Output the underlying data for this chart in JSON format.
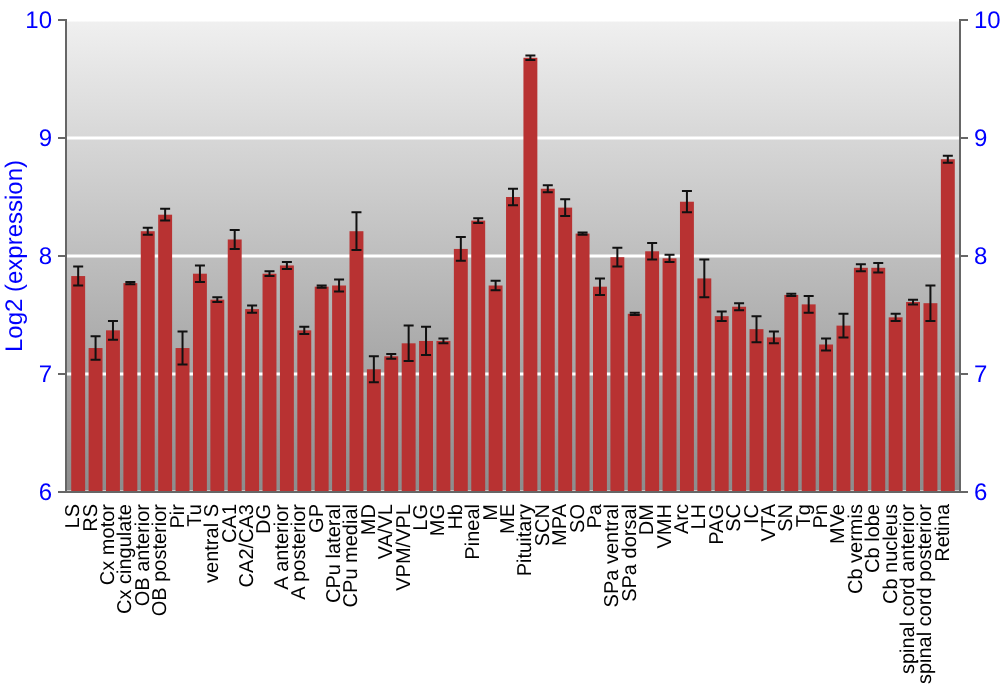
{
  "chart_data": {
    "type": "bar",
    "ylabel": "Log2 (expression)",
    "categories": [
      "LS",
      "RS",
      "Cx motor",
      "Cx cingulate",
      "OB anterior",
      "OB posterior",
      "Pir",
      "Tu",
      "ventral S",
      "CA1",
      "CA2/CA3",
      "DG",
      "A anterior",
      "A posterior",
      "GP",
      "CPu lateral",
      "CPu medial",
      "MD",
      "VA/VL",
      "VPM/VPL",
      "LG",
      "MG",
      "Hb",
      "Pineal",
      "M",
      "ME",
      "Pituitary",
      "SCN",
      "MPA",
      "SO",
      "Pa",
      "SPa ventral",
      "SPa dorsal",
      "DM",
      "VMH",
      "Arc",
      "LH",
      "PAG",
      "SC",
      "IC",
      "VTA",
      "SN",
      "Tg",
      "Pn",
      "MVe",
      "Cb vermis",
      "Cb lobe",
      "Cb nucleus",
      "spinal cord anterior",
      "spinal cord posterior",
      "Retina"
    ],
    "values": [
      7.83,
      7.22,
      7.37,
      7.77,
      8.21,
      8.35,
      7.22,
      7.85,
      7.63,
      8.14,
      7.55,
      7.85,
      7.92,
      7.37,
      7.74,
      7.75,
      8.21,
      7.04,
      7.15,
      7.26,
      7.28,
      7.28,
      8.06,
      8.3,
      7.75,
      8.5,
      9.68,
      8.57,
      8.41,
      8.19,
      7.74,
      7.99,
      7.51,
      8.04,
      7.98,
      8.46,
      7.81,
      7.49,
      7.57,
      7.38,
      7.31,
      7.67,
      7.59,
      7.25,
      7.41,
      7.9,
      7.9,
      7.48,
      7.61,
      7.6,
      8.82
    ],
    "errors": [
      0.08,
      0.1,
      0.08,
      0.01,
      0.03,
      0.05,
      0.14,
      0.07,
      0.02,
      0.08,
      0.03,
      0.02,
      0.03,
      0.03,
      0.01,
      0.05,
      0.16,
      0.11,
      0.02,
      0.15,
      0.12,
      0.02,
      0.1,
      0.02,
      0.04,
      0.07,
      0.02,
      0.03,
      0.07,
      0.01,
      0.07,
      0.08,
      0.01,
      0.07,
      0.03,
      0.09,
      0.16,
      0.04,
      0.03,
      0.11,
      0.05,
      0.01,
      0.07,
      0.05,
      0.1,
      0.03,
      0.04,
      0.03,
      0.02,
      0.15,
      0.03
    ],
    "color": "#b83232",
    "ylim": [
      6,
      10
    ],
    "yticks": [
      6,
      7,
      8,
      9,
      10
    ],
    "y2lim": [
      6,
      10
    ],
    "y2ticks": [
      6,
      7,
      8,
      9,
      10
    ],
    "grid": "y"
  }
}
